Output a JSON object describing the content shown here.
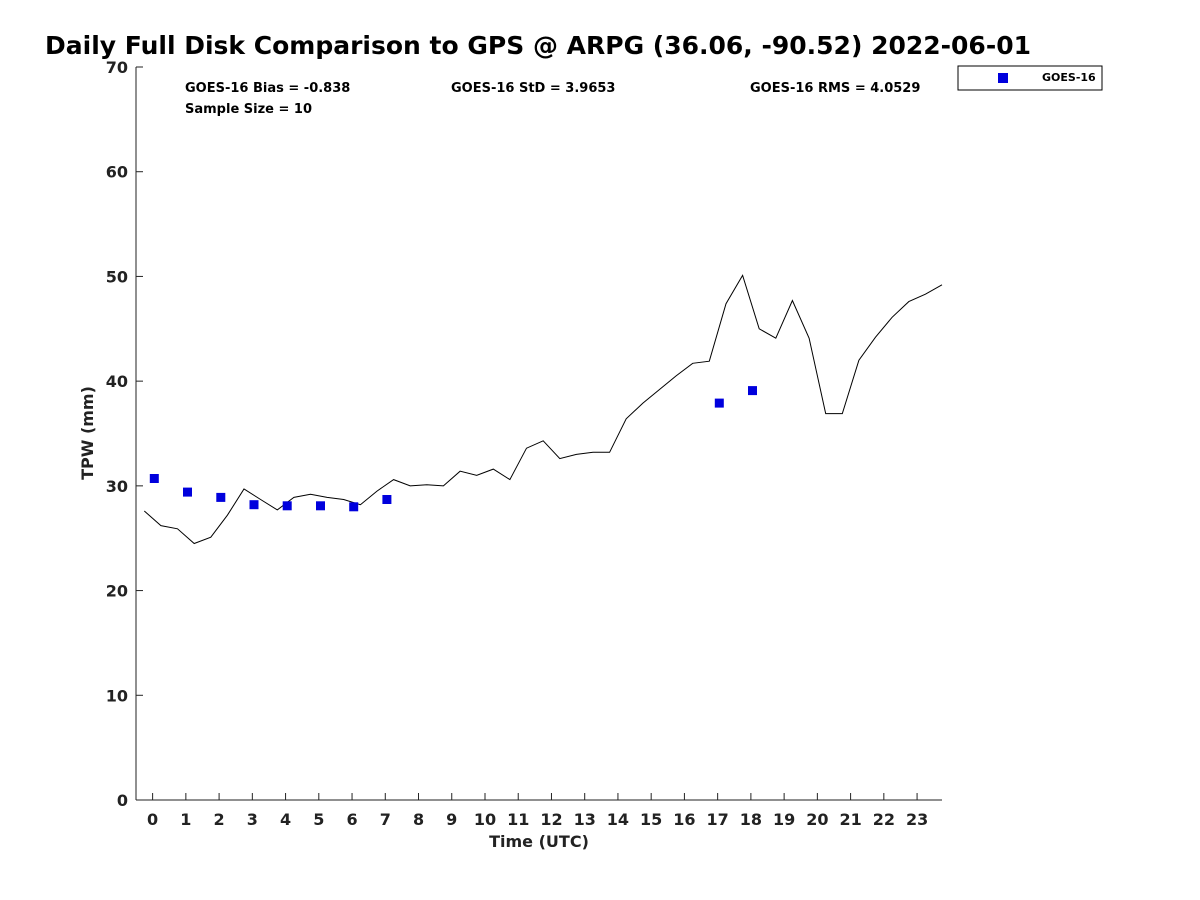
{
  "chart_data": {
    "type": "scatter",
    "title": "Daily Full Disk Comparison to GPS @ ARPG (36.06, -90.52) 2022-06-01",
    "xlabel": "Time (UTC)",
    "ylabel": "TPW (mm)",
    "xlim": [
      -0.5,
      23.75
    ],
    "ylim": [
      0,
      70
    ],
    "x_ticks": [
      "0",
      "1",
      "2",
      "3",
      "4",
      "5",
      "6",
      "7",
      "8",
      "9",
      "10",
      "11",
      "12",
      "13",
      "14",
      "15",
      "16",
      "17",
      "18",
      "19",
      "20",
      "21",
      "22",
      "23"
    ],
    "y_ticks": [
      "0",
      "10",
      "20",
      "30",
      "40",
      "50",
      "60",
      "70"
    ],
    "grid": false,
    "legend_position": "top-right",
    "stats": {
      "bias": "GOES-16 Bias = -0.838",
      "std": "GOES-16 StD = 3.9653",
      "rms": "GOES-16 RMS = 4.0529",
      "sample": "Sample Size = 10"
    },
    "series": [
      {
        "name": "GOES-16",
        "kind": "scatter",
        "color": "#0000dd",
        "x": [
          0.05,
          1.05,
          2.05,
          3.05,
          4.05,
          5.05,
          6.05,
          7.05,
          17.05,
          18.05
        ],
        "y": [
          30.7,
          29.4,
          28.9,
          28.2,
          28.1,
          28.1,
          28.0,
          28.7,
          37.9,
          39.1
        ]
      },
      {
        "kind": "line",
        "color": "#000000",
        "x": [
          -0.25,
          0.25,
          0.75,
          1.25,
          1.75,
          2.25,
          2.75,
          3.25,
          3.75,
          4.25,
          4.75,
          5.25,
          5.75,
          6.25,
          6.75,
          7.25,
          7.75,
          8.25,
          8.75,
          9.25,
          9.75,
          10.25,
          10.75,
          11.25,
          11.75,
          12.25,
          12.75,
          13.25,
          13.75,
          14.25,
          14.75,
          15.25,
          15.75,
          16.25,
          16.75,
          17.25,
          17.75,
          18.25,
          18.75,
          19.25,
          19.75,
          20.25,
          20.75,
          21.25,
          21.75,
          22.25,
          22.75,
          23.25,
          23.75
        ],
        "y": [
          27.6,
          26.2,
          25.9,
          24.5,
          25.1,
          27.2,
          29.7,
          28.7,
          27.7,
          28.9,
          29.2,
          28.9,
          28.7,
          28.2,
          29.5,
          30.6,
          30.0,
          30.1,
          30.0,
          31.4,
          31.0,
          31.6,
          30.6,
          33.6,
          34.3,
          32.6,
          33.0,
          33.2,
          33.2,
          36.4,
          37.9,
          39.2,
          40.5,
          41.7,
          41.9,
          47.4,
          50.1,
          45.0,
          44.1,
          47.7,
          44.1,
          36.9,
          36.9,
          42.0,
          44.2,
          46.1,
          47.6,
          48.3,
          49.2
        ]
      }
    ]
  }
}
